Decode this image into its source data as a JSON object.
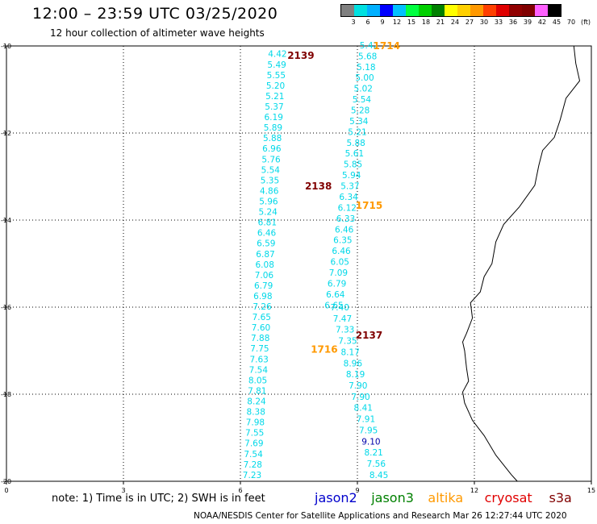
{
  "header": {
    "title": "12:00 – 23:59 UTC 03/25/2020",
    "subtitle": "12 hour collection of altimeter wave heights"
  },
  "scale": {
    "colors": [
      "#808080",
      "#00e0e0",
      "#00b0ff",
      "#0000ff",
      "#00c0ff",
      "#00ff40",
      "#00d000",
      "#008000",
      "#ffff00",
      "#ffd000",
      "#ff9900",
      "#ff4000",
      "#e00000",
      "#900000",
      "#800000",
      "#ff60ff",
      "#000000"
    ],
    "labels": [
      "3",
      "6",
      "9",
      "12",
      "15",
      "18",
      "21",
      "24",
      "27",
      "30",
      "33",
      "36",
      "39",
      "42",
      "45",
      "70",
      "(ft)"
    ]
  },
  "axes": {
    "lon_ticks": [
      "0",
      "3",
      "6",
      "9",
      "12",
      "15"
    ],
    "lat_ticks": [
      "-10",
      "-12",
      "-14",
      "-16",
      "-18",
      "-20"
    ]
  },
  "satellites": [
    {
      "name": "jason2",
      "color": "#0000cc"
    },
    {
      "name": "jason3",
      "color": "#008000"
    },
    {
      "name": "altika",
      "color": "#ff9900"
    },
    {
      "name": "cryosat",
      "color": "#e00000"
    },
    {
      "name": "s3a",
      "color": "#800000"
    }
  ],
  "note": "note:  1) Time is in UTC;  2) SWH is in feet",
  "footer": "NOAA/NESDIS Center for Satellite Applications and Research     Mar 26 12:27:44 UTC 2020",
  "tracks": [
    {
      "name": "track-2139",
      "pass": {
        "label": "2139",
        "color": "#800000",
        "lon": 7.55,
        "lat": -10.2
      },
      "start": [
        6.95,
        -10.18
      ],
      "end": [
        6.3,
        -19.85
      ],
      "values": [
        "4.42",
        "5.49",
        "5.55",
        "5.20",
        "5.21",
        "5.37",
        "6.19",
        "5.89",
        "5.88",
        "6.96",
        "5.76",
        "5.54",
        "5.35",
        "4.86",
        "5.96",
        "5.24",
        "6.81",
        "6.46",
        "6.59",
        "6.87",
        "6.08",
        "7.06",
        "6.79",
        "6.98",
        "7.26",
        "7.65",
        "7.60",
        "7.88",
        "7.75",
        "7.63",
        "7.54",
        "8.05",
        "7.81",
        "8.24",
        "8.38",
        "7.98",
        "7.55",
        "7.69",
        "7.54",
        "7.28",
        "7.23"
      ],
      "colors": [
        "#00d8e8",
        "#00d8e8",
        "#00d8e8",
        "#00d8e8",
        "#00d8e8",
        "#00d8e8",
        "#00d8e8",
        "#00d8e8",
        "#00d8e8",
        "#00d8e8",
        "#00d8e8",
        "#00d8e8",
        "#00d8e8",
        "#00d8e8",
        "#00d8e8",
        "#00d8e8",
        "#00d8e8",
        "#00d8e8",
        "#00d8e8",
        "#00d8e8",
        "#00d8e8",
        "#00d8e8",
        "#00d8e8",
        "#00d8e8",
        "#00d8e8",
        "#00d8e8",
        "#00d8e8",
        "#00d8e8",
        "#00d8e8",
        "#00d8e8",
        "#00d8e8",
        "#00d8e8",
        "#00d8e8",
        "#00d8e8",
        "#00d8e8",
        "#00d8e8",
        "#00d8e8",
        "#00d8e8",
        "#00d8e8",
        "#00d8e8",
        "#00d8e8"
      ]
    },
    {
      "name": "track-1714",
      "pass": {
        "label": "1714",
        "color": "#ff9900",
        "lon": 9.75,
        "lat": -9.98
      },
      "start": [
        9.3,
        -9.98
      ],
      "end": [
        8.4,
        -15.95
      ],
      "values": [
        "5.42",
        "5.68",
        "5.18",
        "5.00",
        "5.02",
        "5.54",
        "5.28",
        "5.34",
        "5.21",
        "5.88",
        "5.61",
        "5.85",
        "5.94",
        "5.37",
        "6.34",
        "6.12",
        "6.33",
        "6.46",
        "6.35",
        "6.46",
        "6.05",
        "7.09",
        "6.79",
        "6.64",
        "6.65"
      ],
      "colors": [
        "#00d8e8",
        "#00d8e8",
        "#00d8e8",
        "#00d8e8",
        "#00d8e8",
        "#00d8e8",
        "#00d8e8",
        "#00d8e8",
        "#00d8e8",
        "#00d8e8",
        "#00d8e8",
        "#00d8e8",
        "#00d8e8",
        "#00d8e8",
        "#00d8e8",
        "#00d8e8",
        "#00d8e8",
        "#00d8e8",
        "#00d8e8",
        "#00d8e8",
        "#00d8e8",
        "#00d8e8",
        "#00d8e8",
        "#00d8e8",
        "#00d8e8"
      ]
    },
    {
      "name": "track-2137",
      "pass": {
        "label": "2137",
        "color": "#800000",
        "lon": 9.3,
        "lat": -16.63
      },
      "start": [
        8.55,
        -16.0
      ],
      "end": [
        9.55,
        -19.85
      ],
      "values": [
        "7.40",
        "7.47",
        "7.33",
        "7.35",
        "8.17",
        "8.96",
        "8.19",
        "7.90",
        "7.90",
        "8.41",
        "7.91",
        "7.95",
        "9.10",
        "8.21",
        "7.56",
        "8.45"
      ],
      "colors": [
        "#00d8e8",
        "#00d8e8",
        "#00d8e8",
        "#00d8e8",
        "#00d8e8",
        "#00d8e8",
        "#00d8e8",
        "#00d8e8",
        "#00d8e8",
        "#00d8e8",
        "#00d8e8",
        "#00d8e8",
        "#0000aa",
        "#00d8e8",
        "#00d8e8",
        "#00d8e8"
      ]
    }
  ],
  "extra_labels": [
    {
      "label": "2138",
      "color": "#800000",
      "lon": 8.0,
      "lat": -13.2
    },
    {
      "label": "1715",
      "color": "#ff9900",
      "lon": 9.3,
      "lat": -13.65
    },
    {
      "label": "1716",
      "color": "#ff9900",
      "lon": 8.15,
      "lat": -16.95
    }
  ],
  "coastline": [
    [
      14.55,
      -10
    ],
    [
      14.6,
      -10.4
    ],
    [
      14.7,
      -10.8
    ],
    [
      14.35,
      -11.2
    ],
    [
      14.2,
      -11.7
    ],
    [
      14.05,
      -12.1
    ],
    [
      13.75,
      -12.4
    ],
    [
      13.65,
      -12.75
    ],
    [
      13.55,
      -13.2
    ],
    [
      13.15,
      -13.7
    ],
    [
      12.75,
      -14.1
    ],
    [
      12.55,
      -14.5
    ],
    [
      12.45,
      -15.0
    ],
    [
      12.25,
      -15.3
    ],
    [
      12.15,
      -15.65
    ],
    [
      11.9,
      -15.9
    ],
    [
      11.95,
      -16.25
    ],
    [
      11.8,
      -16.6
    ],
    [
      11.7,
      -16.8
    ],
    [
      11.75,
      -17.0
    ],
    [
      11.8,
      -17.4
    ],
    [
      11.85,
      -17.7
    ],
    [
      11.7,
      -17.95
    ],
    [
      11.75,
      -18.2
    ],
    [
      11.95,
      -18.6
    ],
    [
      12.25,
      -18.95
    ],
    [
      12.55,
      -19.4
    ],
    [
      12.95,
      -19.85
    ],
    [
      13.1,
      -20
    ]
  ]
}
